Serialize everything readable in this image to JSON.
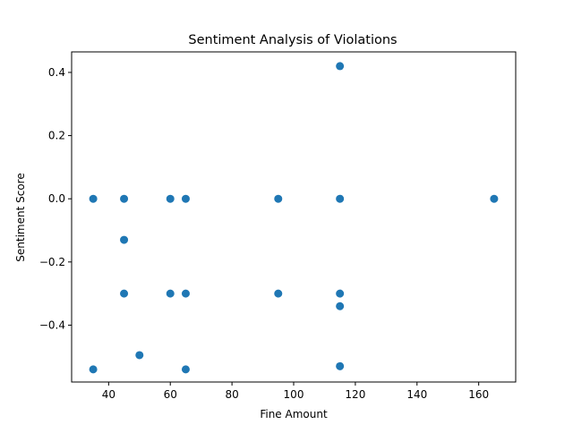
{
  "chart_data": {
    "type": "scatter",
    "title": "Sentiment Analysis of Violations",
    "xlabel": "Fine Amount",
    "ylabel": "Sentiment Score",
    "xlim": [
      28,
      172
    ],
    "ylim": [
      -0.58,
      0.465
    ],
    "xticks": [
      40,
      60,
      80,
      100,
      120,
      140,
      160
    ],
    "yticks": [
      -0.4,
      -0.2,
      0.0,
      0.2,
      0.4
    ],
    "ytick_labels": [
      "−0.4",
      "−0.2",
      "0.0",
      "0.2",
      "0.4"
    ],
    "grid": false,
    "marker_color": "#1f77b4",
    "points": [
      {
        "x": 35,
        "y": 0.0
      },
      {
        "x": 35,
        "y": -0.54
      },
      {
        "x": 45,
        "y": 0.0
      },
      {
        "x": 45,
        "y": -0.13
      },
      {
        "x": 45,
        "y": -0.3
      },
      {
        "x": 50,
        "y": -0.495
      },
      {
        "x": 60,
        "y": 0.0
      },
      {
        "x": 60,
        "y": -0.3
      },
      {
        "x": 65,
        "y": 0.0
      },
      {
        "x": 65,
        "y": -0.3
      },
      {
        "x": 65,
        "y": -0.54
      },
      {
        "x": 95,
        "y": 0.0
      },
      {
        "x": 95,
        "y": -0.3
      },
      {
        "x": 115,
        "y": 0.42
      },
      {
        "x": 115,
        "y": 0.0
      },
      {
        "x": 115,
        "y": -0.3
      },
      {
        "x": 115,
        "y": -0.34
      },
      {
        "x": 115,
        "y": -0.53
      },
      {
        "x": 165,
        "y": 0.0
      }
    ]
  }
}
